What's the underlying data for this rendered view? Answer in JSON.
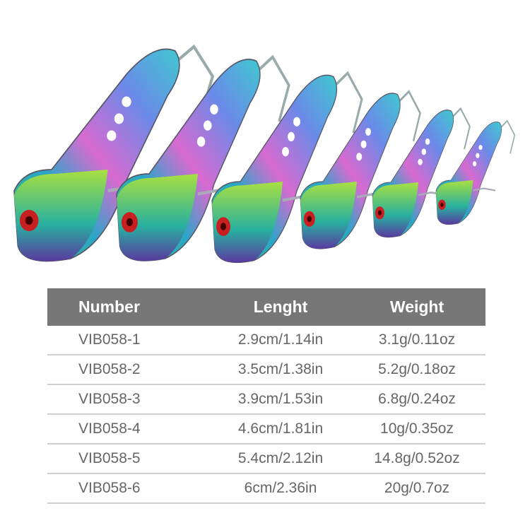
{
  "table": {
    "headers": [
      "Number",
      "Lenght",
      "Weight"
    ],
    "rows": [
      [
        "VIB058-1",
        "2.9cm/1.14in",
        "3.1g/0.11oz"
      ],
      [
        "VIB058-2",
        "3.5cm/1.38in",
        "5.2g/0.18oz"
      ],
      [
        "VIB058-3",
        "3.9cm/1.53in",
        "6.8g/0.24oz"
      ],
      [
        "VIB058-4",
        "4.6cm/1.81in",
        "10g/0.35oz"
      ],
      [
        "VIB058-5",
        "5.4cm/2.12in",
        "14.8g/0.52oz"
      ],
      [
        "VIB058-6",
        "6cm/2.36in",
        "20g/0.7oz"
      ]
    ]
  },
  "colors": {
    "header_bg": "#777777",
    "header_text": "#ffffff",
    "body_text": "#666666"
  }
}
